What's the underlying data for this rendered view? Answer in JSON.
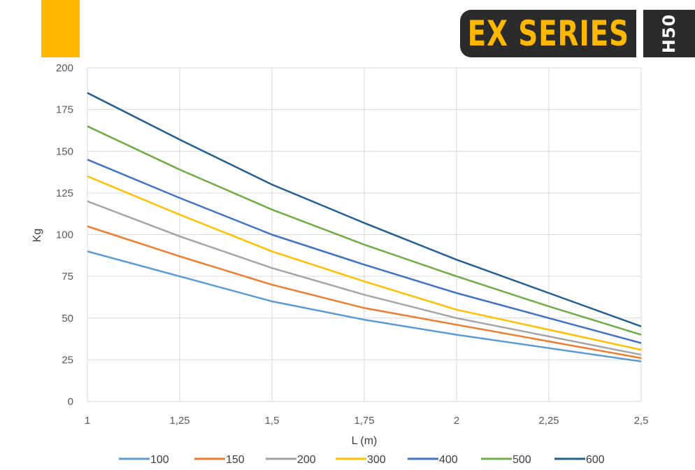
{
  "header": {
    "brand": "EX SERIES",
    "model": "H50",
    "accent_color": "#FFB800",
    "badge_color": "#2b2b2b"
  },
  "chart_data": {
    "type": "line",
    "title": "",
    "xlabel": "L (m)",
    "ylabel": "Kg",
    "x": [
      1,
      1.25,
      1.5,
      1.75,
      2,
      2.25,
      2.5
    ],
    "x_tick_labels": [
      "1",
      "1,25",
      "1,5",
      "1,75",
      "2",
      "2,25",
      "2,5"
    ],
    "y_ticks": [
      0,
      25,
      50,
      75,
      100,
      125,
      150,
      175,
      200
    ],
    "xlim": [
      1,
      2.5
    ],
    "ylim": [
      0,
      200
    ],
    "grid": true,
    "legend_position": "bottom",
    "series": [
      {
        "name": "100",
        "color": "#5B9BD5",
        "values": [
          90,
          75,
          60,
          49,
          40,
          32,
          24
        ]
      },
      {
        "name": "150",
        "color": "#ED7D31",
        "values": [
          105,
          87,
          70,
          56,
          46,
          36,
          26
        ]
      },
      {
        "name": "200",
        "color": "#A5A5A5",
        "values": [
          120,
          99,
          80,
          64,
          50,
          39,
          28
        ]
      },
      {
        "name": "300",
        "color": "#FFC000",
        "values": [
          135,
          112,
          90,
          72,
          55,
          43,
          31
        ]
      },
      {
        "name": "400",
        "color": "#4472C4",
        "values": [
          145,
          122,
          100,
          82,
          65,
          50,
          35
        ]
      },
      {
        "name": "500",
        "color": "#70AD47",
        "values": [
          165,
          139,
          115,
          94,
          75,
          57,
          40
        ]
      },
      {
        "name": "600",
        "color": "#255E91",
        "values": [
          185,
          157,
          130,
          107,
          85,
          65,
          45
        ]
      }
    ]
  }
}
